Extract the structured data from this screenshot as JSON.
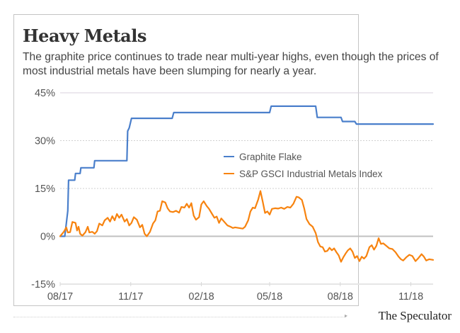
{
  "header": {
    "title": "Heavy Metals",
    "subtitle": "The graphite price continues to trade near multi-year highs, even though the prices of most industrial metals have been slumping for nearly a year."
  },
  "footer": {
    "brand": "The Speculator"
  },
  "chart_data": {
    "type": "line",
    "title": "Heavy Metals",
    "subtitle": "The graphite price continues to trade near multi-year highs, even though the prices of most industrial metals have been slumping for nearly a year.",
    "xlabel": "",
    "ylabel": "",
    "x_range": [
      "2017-08-01",
      "2018-11-30"
    ],
    "ylim": [
      -15,
      45
    ],
    "y_ticks": [
      -15,
      0,
      15,
      30,
      45
    ],
    "y_tick_labels": [
      "-15%",
      "0%",
      "15%",
      "30%",
      "45%"
    ],
    "x_ticks": [
      "2017-08-01",
      "2017-11-01",
      "2018-02-01",
      "2018-05-01",
      "2018-08-01",
      "2018-11-01"
    ],
    "x_tick_labels": [
      "08/17",
      "11/17",
      "02/18",
      "05/18",
      "08/18",
      "11/18"
    ],
    "grid": "horizontal",
    "zero_line": true,
    "legend": {
      "position": "center-right",
      "entries": [
        "Graphite Flake",
        "S&P GSCI Industrial Metals Index"
      ]
    },
    "colors": {
      "Graphite Flake": "#4a7fcb",
      "S&P GSCI Industrial Metals Index": "#f7830f"
    },
    "series": [
      {
        "name": "Graphite Flake",
        "color": "#4a7fcb",
        "step": true,
        "points": [
          [
            "2017-08-01",
            0
          ],
          [
            "2017-08-07",
            0
          ],
          [
            "2017-08-09",
            4
          ],
          [
            "2017-08-11",
            8
          ],
          [
            "2017-08-12",
            17.6
          ],
          [
            "2017-08-20",
            17.6
          ],
          [
            "2017-08-21",
            19.7
          ],
          [
            "2017-08-27",
            19.7
          ],
          [
            "2017-08-28",
            21.5
          ],
          [
            "2017-09-14",
            21.5
          ],
          [
            "2017-09-15",
            23.7
          ],
          [
            "2017-10-27",
            23.7
          ],
          [
            "2017-10-28",
            33
          ],
          [
            "2017-10-30",
            34
          ],
          [
            "2017-11-02",
            37
          ],
          [
            "2017-12-25",
            37
          ],
          [
            "2017-12-27",
            38.8
          ],
          [
            "2018-05-01",
            38.8
          ],
          [
            "2018-05-03",
            40.8
          ],
          [
            "2018-06-30",
            40.8
          ],
          [
            "2018-07-02",
            37.3
          ],
          [
            "2018-08-02",
            37.3
          ],
          [
            "2018-08-04",
            36
          ],
          [
            "2018-08-20",
            36
          ],
          [
            "2018-08-22",
            35.2
          ],
          [
            "2018-11-30",
            35.2
          ]
        ]
      },
      {
        "name": "S&P GSCI Industrial Metals Index",
        "color": "#f7830f",
        "points": [
          [
            "2017-08-01",
            0
          ],
          [
            "2017-08-06",
            1.5
          ],
          [
            "2017-08-09",
            2.8
          ],
          [
            "2017-08-11",
            1.2
          ],
          [
            "2017-08-14",
            1.3
          ],
          [
            "2017-08-17",
            4.5
          ],
          [
            "2017-08-21",
            4.2
          ],
          [
            "2017-08-23",
            1.8
          ],
          [
            "2017-08-25",
            3
          ],
          [
            "2017-08-27",
            0.8
          ],
          [
            "2017-08-30",
            0.2
          ],
          [
            "2017-09-03",
            1.3
          ],
          [
            "2017-09-06",
            3
          ],
          [
            "2017-09-08",
            1.2
          ],
          [
            "2017-09-12",
            1.4
          ],
          [
            "2017-09-15",
            0.8
          ],
          [
            "2017-09-18",
            1.6
          ],
          [
            "2017-09-21",
            4
          ],
          [
            "2017-09-25",
            3.4
          ],
          [
            "2017-09-28",
            5
          ],
          [
            "2017-10-02",
            5.8
          ],
          [
            "2017-10-05",
            4.6
          ],
          [
            "2017-10-08",
            6.3
          ],
          [
            "2017-10-11",
            5
          ],
          [
            "2017-10-14",
            7
          ],
          [
            "2017-10-17",
            5.8
          ],
          [
            "2017-10-20",
            6.8
          ],
          [
            "2017-10-24",
            4.6
          ],
          [
            "2017-10-27",
            5.4
          ],
          [
            "2017-10-30",
            3.4
          ],
          [
            "2017-11-02",
            4.2
          ],
          [
            "2017-11-05",
            6
          ],
          [
            "2017-11-09",
            5.2
          ],
          [
            "2017-11-13",
            2.8
          ],
          [
            "2017-11-16",
            3.6
          ],
          [
            "2017-11-19",
            0.8
          ],
          [
            "2017-11-22",
            0
          ],
          [
            "2017-11-26",
            1.4
          ],
          [
            "2017-11-30",
            4
          ],
          [
            "2017-12-03",
            5
          ],
          [
            "2017-12-06",
            7.8
          ],
          [
            "2017-12-09",
            8
          ],
          [
            "2017-12-12",
            11
          ],
          [
            "2017-12-16",
            10.6
          ],
          [
            "2017-12-19",
            8.8
          ],
          [
            "2017-12-22",
            7.8
          ],
          [
            "2017-12-26",
            7.6
          ],
          [
            "2017-12-30",
            8
          ],
          [
            "2018-01-03",
            7.4
          ],
          [
            "2018-01-06",
            9.2
          ],
          [
            "2018-01-10",
            9
          ],
          [
            "2018-01-13",
            10.2
          ],
          [
            "2018-01-16",
            9
          ],
          [
            "2018-01-19",
            10.4
          ],
          [
            "2018-01-22",
            6.5
          ],
          [
            "2018-01-25",
            5.2
          ],
          [
            "2018-01-29",
            6
          ],
          [
            "2018-02-01",
            10
          ],
          [
            "2018-02-04",
            11
          ],
          [
            "2018-02-08",
            9.5
          ],
          [
            "2018-02-11",
            8.6
          ],
          [
            "2018-02-15",
            7
          ],
          [
            "2018-02-18",
            5.8
          ],
          [
            "2018-02-21",
            6.2
          ],
          [
            "2018-02-24",
            4.2
          ],
          [
            "2018-02-27",
            5.6
          ],
          [
            "2018-03-03",
            4.5
          ],
          [
            "2018-03-07",
            3.4
          ],
          [
            "2018-03-11",
            3
          ],
          [
            "2018-03-14",
            2.6
          ],
          [
            "2018-03-17",
            2.8
          ],
          [
            "2018-03-22",
            2.6
          ],
          [
            "2018-03-27",
            2.4
          ],
          [
            "2018-03-30",
            3
          ],
          [
            "2018-04-03",
            5
          ],
          [
            "2018-04-06",
            7.8
          ],
          [
            "2018-04-09",
            9
          ],
          [
            "2018-04-12",
            8.8
          ],
          [
            "2018-04-16",
            11.5
          ],
          [
            "2018-04-19",
            14.2
          ],
          [
            "2018-04-22",
            10.8
          ],
          [
            "2018-04-25",
            7.3
          ],
          [
            "2018-04-28",
            7.8
          ],
          [
            "2018-05-01",
            6.8
          ],
          [
            "2018-05-04",
            8.6
          ],
          [
            "2018-05-08",
            8.8
          ],
          [
            "2018-05-12",
            8.7
          ],
          [
            "2018-05-16",
            9
          ],
          [
            "2018-05-20",
            8.6
          ],
          [
            "2018-05-24",
            9.2
          ],
          [
            "2018-05-28",
            9
          ],
          [
            "2018-06-01",
            10.2
          ],
          [
            "2018-06-05",
            12.4
          ],
          [
            "2018-06-08",
            12.2
          ],
          [
            "2018-06-12",
            11.4
          ],
          [
            "2018-06-15",
            8.8
          ],
          [
            "2018-06-18",
            5.4
          ],
          [
            "2018-06-22",
            3.8
          ],
          [
            "2018-06-26",
            3
          ],
          [
            "2018-06-30",
            1
          ],
          [
            "2018-07-03",
            -1.8
          ],
          [
            "2018-07-06",
            -3.2
          ],
          [
            "2018-07-09",
            -3.4
          ],
          [
            "2018-07-12",
            -4.8
          ],
          [
            "2018-07-15",
            -4.6
          ],
          [
            "2018-07-18",
            -3.6
          ],
          [
            "2018-07-21",
            -4.4
          ],
          [
            "2018-07-24",
            -3.8
          ],
          [
            "2018-07-27",
            -5
          ],
          [
            "2018-07-30",
            -6
          ],
          [
            "2018-08-02",
            -8
          ],
          [
            "2018-08-05",
            -6.6
          ],
          [
            "2018-08-08",
            -5.4
          ],
          [
            "2018-08-11",
            -4.4
          ],
          [
            "2018-08-14",
            -3.8
          ],
          [
            "2018-08-17",
            -4.8
          ],
          [
            "2018-08-20",
            -6.8
          ],
          [
            "2018-08-23",
            -6.2
          ],
          [
            "2018-08-26",
            -7.8
          ],
          [
            "2018-08-29",
            -6.4
          ],
          [
            "2018-09-01",
            -7
          ],
          [
            "2018-09-04",
            -6.2
          ],
          [
            "2018-09-08",
            -3.4
          ],
          [
            "2018-09-11",
            -2.8
          ],
          [
            "2018-09-14",
            -4.2
          ],
          [
            "2018-09-17",
            -3
          ],
          [
            "2018-09-20",
            -0.6
          ],
          [
            "2018-09-23",
            -2.4
          ],
          [
            "2018-09-26",
            -2.2
          ],
          [
            "2018-09-30",
            -3
          ],
          [
            "2018-10-04",
            -3.8
          ],
          [
            "2018-10-08",
            -4
          ],
          [
            "2018-10-12",
            -5
          ],
          [
            "2018-10-16",
            -6.4
          ],
          [
            "2018-10-19",
            -7.2
          ],
          [
            "2018-10-22",
            -7.6
          ],
          [
            "2018-10-26",
            -6.6
          ],
          [
            "2018-10-30",
            -5.8
          ],
          [
            "2018-11-03",
            -6.2
          ],
          [
            "2018-11-07",
            -7.8
          ],
          [
            "2018-11-11",
            -6.8
          ],
          [
            "2018-11-15",
            -5.6
          ],
          [
            "2018-11-18",
            -6.4
          ],
          [
            "2018-11-21",
            -7.6
          ],
          [
            "2018-11-25",
            -7.2
          ],
          [
            "2018-11-30",
            -7.4
          ]
        ]
      }
    ]
  }
}
